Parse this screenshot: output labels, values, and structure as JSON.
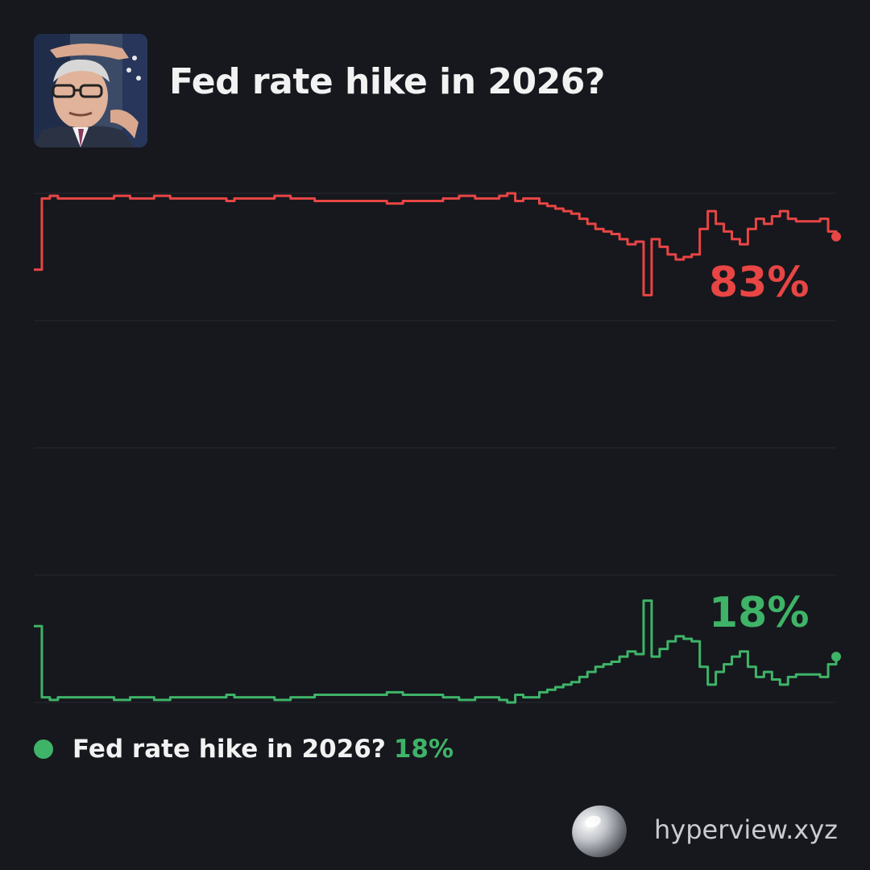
{
  "header": {
    "title": "Fed rate hike in 2026?",
    "avatar_alt": "speaker-photo"
  },
  "colors": {
    "background": "#16181d",
    "yes": "#e84545",
    "no": "#3fb368",
    "grid": "#262930"
  },
  "chart_data": [
    {
      "type": "line",
      "name": "chart-yes",
      "label": "83%",
      "color": "#e84545",
      "ylim": [
        0,
        100
      ],
      "x": [
        0,
        1,
        2,
        3,
        4,
        5,
        6,
        7,
        8,
        9,
        10,
        11,
        12,
        13,
        14,
        15,
        16,
        17,
        18,
        19,
        20,
        21,
        22,
        23,
        24,
        25,
        26,
        27,
        28,
        29,
        30,
        31,
        32,
        33,
        34,
        35,
        36,
        37,
        38,
        39,
        40,
        41,
        42,
        43,
        44,
        45,
        46,
        47,
        48,
        49,
        50,
        51,
        52,
        53,
        54,
        55,
        56,
        57,
        58,
        59,
        60,
        61,
        62,
        63,
        64,
        65,
        66,
        67,
        68,
        69,
        70,
        71,
        72,
        73,
        74,
        75,
        76,
        77,
        78,
        79,
        80,
        81,
        82,
        83,
        84,
        85,
        86,
        87,
        88,
        89,
        90,
        91,
        92,
        93,
        94,
        95,
        96,
        97,
        98,
        99,
        100
      ],
      "values": [
        70,
        98,
        99,
        98,
        98,
        98,
        98,
        98,
        98,
        98,
        99,
        99,
        98,
        98,
        98,
        99,
        99,
        98,
        98,
        98,
        98,
        98,
        98,
        98,
        97,
        98,
        98,
        98,
        98,
        98,
        99,
        99,
        98,
        98,
        98,
        97,
        97,
        97,
        97,
        97,
        97,
        97,
        97,
        97,
        96,
        96,
        97,
        97,
        97,
        97,
        97,
        98,
        98,
        99,
        99,
        98,
        98,
        98,
        99,
        100,
        97,
        98,
        98,
        96,
        95,
        94,
        93,
        92,
        90,
        88,
        86,
        85,
        84,
        82,
        80,
        81,
        60,
        82,
        79,
        76,
        74,
        75,
        76,
        86,
        93,
        88,
        85,
        82,
        80,
        86,
        90,
        88,
        91,
        93,
        90,
        89,
        89,
        89,
        90,
        85,
        83
      ]
    },
    {
      "type": "line",
      "name": "chart-no",
      "label": "18%",
      "color": "#3fb368",
      "ylim": [
        0,
        100
      ],
      "x": [
        0,
        1,
        2,
        3,
        4,
        5,
        6,
        7,
        8,
        9,
        10,
        11,
        12,
        13,
        14,
        15,
        16,
        17,
        18,
        19,
        20,
        21,
        22,
        23,
        24,
        25,
        26,
        27,
        28,
        29,
        30,
        31,
        32,
        33,
        34,
        35,
        36,
        37,
        38,
        39,
        40,
        41,
        42,
        43,
        44,
        45,
        46,
        47,
        48,
        49,
        50,
        51,
        52,
        53,
        54,
        55,
        56,
        57,
        58,
        59,
        60,
        61,
        62,
        63,
        64,
        65,
        66,
        67,
        68,
        69,
        70,
        71,
        72,
        73,
        74,
        75,
        76,
        77,
        78,
        79,
        80,
        81,
        82,
        83,
        84,
        85,
        86,
        87,
        88,
        89,
        90,
        91,
        92,
        93,
        94,
        95,
        96,
        97,
        98,
        99,
        100
      ],
      "values": [
        30,
        2,
        1,
        2,
        2,
        2,
        2,
        2,
        2,
        2,
        1,
        1,
        2,
        2,
        2,
        1,
        1,
        2,
        2,
        2,
        2,
        2,
        2,
        2,
        3,
        2,
        2,
        2,
        2,
        2,
        1,
        1,
        2,
        2,
        2,
        3,
        3,
        3,
        3,
        3,
        3,
        3,
        3,
        3,
        4,
        4,
        3,
        3,
        3,
        3,
        3,
        2,
        2,
        1,
        1,
        2,
        2,
        2,
        1,
        0,
        3,
        2,
        2,
        4,
        5,
        6,
        7,
        8,
        10,
        12,
        14,
        15,
        16,
        18,
        20,
        19,
        40,
        18,
        21,
        24,
        26,
        25,
        24,
        14,
        7,
        12,
        15,
        18,
        20,
        14,
        10,
        12,
        9,
        7,
        10,
        11,
        11,
        11,
        10,
        15,
        18
      ]
    }
  ],
  "legend": {
    "name": "Fed rate hike in 2026?",
    "value": "18%"
  },
  "brand": {
    "text": "hyperview.xyz"
  }
}
